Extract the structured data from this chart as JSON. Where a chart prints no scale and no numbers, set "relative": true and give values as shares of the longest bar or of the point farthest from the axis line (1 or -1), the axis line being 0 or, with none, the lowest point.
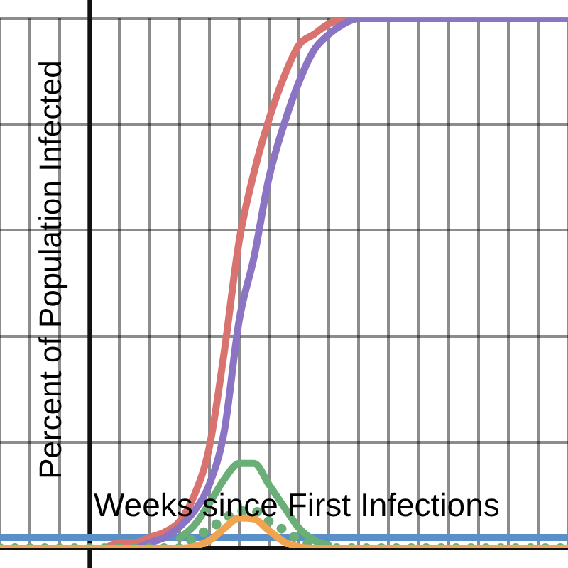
{
  "chart_data": {
    "type": "line",
    "relative": true,
    "grid": true,
    "legend": false,
    "tick_labels": false,
    "xlabel": "Weeks since First Infections",
    "ylabel": "Percent of Population Infected",
    "categories": [
      null,
      null,
      null,
      null,
      null,
      null,
      null,
      null,
      null,
      null,
      null,
      null,
      null,
      null,
      null,
      null,
      null,
      null,
      null,
      null,
      null,
      null,
      null,
      null,
      null,
      null,
      null,
      null,
      null,
      null,
      null,
      null,
      null,
      null,
      null,
      null,
      null,
      null,
      null
    ],
    "series": [
      {
        "color": "#5b8fc8",
        "values": [
          0.02,
          0.02,
          0.02,
          0.02,
          0.02,
          0.02,
          0.02,
          0.02,
          0.02,
          0.02,
          0.02,
          0.02,
          0.02,
          0.02,
          0.02,
          0.02,
          0.02,
          0.02,
          0.02,
          0.02,
          0.02,
          0.02,
          0.02,
          0.02,
          0.02,
          0.02,
          0.02,
          0.02,
          0.02,
          0.02,
          0.02,
          0.02,
          0.02,
          0.02,
          0.02,
          0.02,
          0.02,
          0.02,
          0.02
        ]
      },
      {
        "color": "#d8736f",
        "values": [
          null,
          null,
          null,
          null,
          null,
          null,
          null,
          0,
          0.01,
          0.01,
          0.02,
          0.03,
          0.05,
          0.1,
          0.19,
          0.37,
          0.58,
          0.71,
          0.81,
          0.89,
          0.95,
          0.97,
          0.99,
          1,
          null,
          null,
          null,
          null,
          null,
          null,
          null,
          null,
          null,
          null,
          null,
          null,
          null,
          null,
          null
        ]
      },
      {
        "color": "#8c74c4",
        "values": [
          null,
          null,
          null,
          null,
          null,
          null,
          null,
          null,
          0,
          0,
          0.01,
          0.02,
          0.04,
          0.07,
          0.12,
          0.22,
          0.43,
          0.55,
          0.7,
          0.8,
          0.88,
          0.94,
          0.97,
          0.99,
          1,
          1,
          1,
          1,
          1,
          1,
          1,
          1,
          1,
          1,
          1,
          1,
          1,
          1,
          1
        ]
      },
      {
        "color": "#6aae78",
        "values": [
          null,
          null,
          null,
          null,
          null,
          null,
          null,
          null,
          null,
          null,
          null,
          null,
          0.018,
          0.043,
          0.084,
          0.13,
          0.16,
          0.16,
          0.12,
          0.078,
          0.038,
          0.015,
          0.005,
          null,
          null,
          null,
          null,
          null,
          null,
          null,
          null,
          null,
          null,
          null,
          null,
          null,
          null,
          null,
          null
        ]
      },
      {
        "color": "#6aae78",
        "line_style": "dotted",
        "values": [
          0,
          0,
          0,
          0,
          0,
          0,
          0,
          0,
          0,
          0,
          0,
          0,
          0,
          0.02,
          0.036,
          0.055,
          0.07,
          0.07,
          0.05,
          0.034,
          0.016,
          0.006,
          0,
          0,
          0,
          0,
          0,
          0,
          0,
          0,
          0,
          0,
          0,
          0,
          0,
          0,
          0,
          0,
          0
        ]
      },
      {
        "color": "#f0a450",
        "values": [
          0,
          0,
          0,
          0,
          0,
          0,
          0,
          0,
          0,
          0,
          0,
          0,
          0,
          0.003,
          0.014,
          0.037,
          0.057,
          0.055,
          0.033,
          0.012,
          0.002,
          0,
          0,
          0,
          0,
          0,
          0,
          0,
          0,
          0,
          0,
          0,
          0,
          0,
          0,
          0,
          0,
          0,
          0
        ]
      }
    ]
  }
}
